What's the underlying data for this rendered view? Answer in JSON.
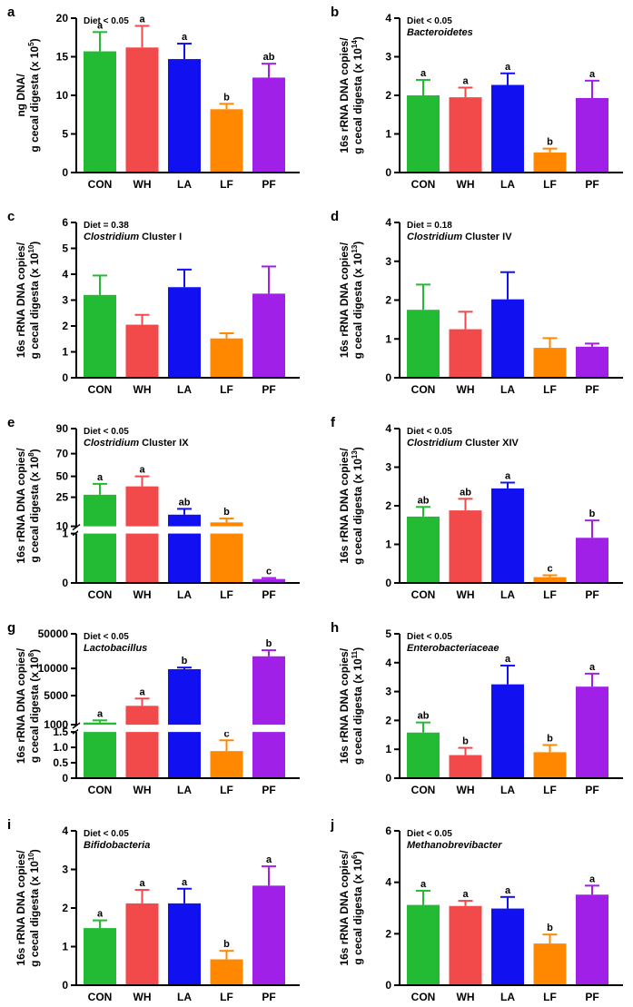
{
  "figure": {
    "categories": [
      "CON",
      "WH",
      "LA",
      "LF",
      "PF"
    ],
    "colors": {
      "CON": "#22bb33",
      "WH": "#f24a4a",
      "LA": "#1010f0",
      "LF": "#ff8800",
      "PF": "#a020e8"
    }
  },
  "chart_data": [
    {
      "panel": "a",
      "type": "bar",
      "categories": [
        "CON",
        "WH",
        "LA",
        "LF",
        "PF"
      ],
      "values": [
        15.7,
        16.2,
        14.7,
        8.2,
        12.3
      ],
      "errors": [
        2.5,
        2.8,
        2.0,
        0.7,
        1.8
      ],
      "sig_letters": [
        "a",
        "a",
        "a",
        "b",
        "ab"
      ],
      "stat": "Diet < 0.05",
      "taxon": "",
      "ylabel_line1": "ng DNA/",
      "ylabel_line2": "g cecal digesta (x 10",
      "ylabel_exp": "5",
      "ylabel_close": ")",
      "ylim": [
        0,
        20
      ],
      "yticks": [
        "0",
        "5",
        "10",
        "15",
        "20"
      ]
    },
    {
      "panel": "b",
      "type": "bar",
      "categories": [
        "CON",
        "WH",
        "LA",
        "LF",
        "PF"
      ],
      "values": [
        2.0,
        1.95,
        2.27,
        0.52,
        1.93
      ],
      "errors": [
        0.4,
        0.25,
        0.3,
        0.1,
        0.45
      ],
      "sig_letters": [
        "a",
        "a",
        "a",
        "b",
        "a"
      ],
      "stat": "Diet < 0.05",
      "taxon": "Bacteroidetes",
      "ylabel_line1": "16s rRNA DNA copies/",
      "ylabel_line2": "g cecal digesta (x 10",
      "ylabel_exp": "14",
      "ylabel_close": ")",
      "ylim": [
        0,
        4
      ],
      "yticks": [
        "0",
        "1",
        "2",
        "3",
        "4"
      ]
    },
    {
      "panel": "c",
      "type": "bar",
      "categories": [
        "CON",
        "WH",
        "LA",
        "LF",
        "PF"
      ],
      "values": [
        3.2,
        2.05,
        3.5,
        1.52,
        3.25
      ],
      "errors": [
        0.75,
        0.38,
        0.68,
        0.2,
        1.05
      ],
      "sig_letters": [
        "",
        "",
        "",
        "",
        ""
      ],
      "stat": "Diet  = 0.38",
      "taxon": "Clostridium",
      "taxon_suffix": " Cluster I",
      "ylabel_line1": "16s rRNA DNA copies/",
      "ylabel_line2": "g cecal digesta (x 10",
      "ylabel_exp": "10",
      "ylabel_close": ")",
      "ylim": [
        0,
        6
      ],
      "yticks": [
        "0",
        "1",
        "2",
        "3",
        "4",
        "5",
        "6"
      ]
    },
    {
      "panel": "d",
      "type": "bar",
      "categories": [
        "CON",
        "WH",
        "LA",
        "LF",
        "PF"
      ],
      "values": [
        1.75,
        1.25,
        2.02,
        0.77,
        0.8
      ],
      "errors": [
        0.65,
        0.45,
        0.7,
        0.25,
        0.08
      ],
      "sig_letters": [
        "",
        "",
        "",
        "",
        ""
      ],
      "stat": "Diet = 0.18",
      "taxon": "Clostridium",
      "taxon_suffix": " Cluster IV",
      "ylabel_line1": "16s rRNA DNA copies/",
      "ylabel_line2": "g cecal digesta (x 10",
      "ylabel_exp": "13",
      "ylabel_close": ")",
      "ylim": [
        0,
        4
      ],
      "yticks": [
        "0",
        "1",
        "2",
        "3",
        "4"
      ]
    },
    {
      "panel": "e",
      "type": "bar",
      "categories": [
        "CON",
        "WH",
        "LA",
        "LF",
        "PF"
      ],
      "values": [
        28,
        38,
        16,
        12,
        0.08
      ],
      "errors": [
        13,
        12,
        3,
        2,
        0.02
      ],
      "sig_letters": [
        "a",
        "a",
        "ab",
        "b",
        "c"
      ],
      "stat": "Diet < 0.05",
      "taxon": "Clostridium",
      "taxon_suffix": " Cluster IX",
      "ylabel_line1": "16s rRNA DNA copies/",
      "ylabel_line2": "g cecal digesta (x 10",
      "ylabel_exp": "8",
      "ylabel_close": ")",
      "axis_break": true,
      "lower_ylim": [
        0,
        1
      ],
      "upper_ylim": [
        10,
        90
      ],
      "yticks": [
        "0",
        "1",
        "10",
        "25",
        "50",
        "70",
        "90"
      ]
    },
    {
      "panel": "f",
      "type": "bar",
      "categories": [
        "CON",
        "WH",
        "LA",
        "LF",
        "PF"
      ],
      "values": [
        1.72,
        1.88,
        2.45,
        0.15,
        1.17
      ],
      "errors": [
        0.25,
        0.3,
        0.15,
        0.05,
        0.45
      ],
      "sig_letters": [
        "ab",
        "ab",
        "a",
        "c",
        "b"
      ],
      "stat": "Diet < 0.05",
      "taxon": "Clostridium",
      "taxon_suffix": " Cluster XIV",
      "ylabel_line1": "16s rRNA DNA copies/",
      "ylabel_line2": "g cecal digesta (x 10",
      "ylabel_exp": "13",
      "ylabel_close": ")",
      "ylim": [
        0,
        4
      ],
      "yticks": [
        "0",
        "1",
        "2",
        "3",
        "4"
      ]
    },
    {
      "panel": "g",
      "type": "bar",
      "categories": [
        "CON",
        "WH",
        "LA",
        "LF",
        "PF"
      ],
      "values": [
        1300,
        3600,
        9800,
        0.88,
        24000
      ],
      "errors": [
        300,
        1000,
        1200,
        0.35,
        7000
      ],
      "sig_letters": [
        "a",
        "a",
        "b",
        "c",
        "b"
      ],
      "stat": "Diet < 0.05",
      "taxon": "Lactobacillus",
      "ylabel_line1": "16s rRNA DNA copies/",
      "ylabel_line2": "g cecal digesta (x 10",
      "ylabel_exp": "8",
      "ylabel_close": ")",
      "axis_break": true,
      "lower_ylim": [
        0,
        1.5
      ],
      "upper_ylim": [
        1000,
        50000
      ],
      "yticks": [
        "0",
        "0.5",
        "1.0",
        "1.5",
        "1000",
        "5000",
        "10000",
        "50000"
      ]
    },
    {
      "panel": "h",
      "type": "bar",
      "categories": [
        "CON",
        "WH",
        "LA",
        "LF",
        "PF"
      ],
      "values": [
        1.58,
        0.8,
        3.25,
        0.9,
        3.17
      ],
      "errors": [
        0.35,
        0.25,
        0.65,
        0.25,
        0.45
      ],
      "sig_letters": [
        "ab",
        "b",
        "a",
        "b",
        "a"
      ],
      "stat": "Diet < 0.05",
      "taxon": "Enterobacteriaceae",
      "ylabel_line1": "16s rRNA DNA copies/",
      "ylabel_line2": "g cecal digesta (x 10",
      "ylabel_exp": "11",
      "ylabel_close": ")",
      "ylim": [
        0,
        5
      ],
      "yticks": [
        "0",
        "1",
        "2",
        "3",
        "4",
        "5"
      ]
    },
    {
      "panel": "i",
      "type": "bar",
      "categories": [
        "CON",
        "WH",
        "LA",
        "LF",
        "PF"
      ],
      "values": [
        1.48,
        2.12,
        2.12,
        0.67,
        2.58
      ],
      "errors": [
        0.2,
        0.35,
        0.38,
        0.22,
        0.5
      ],
      "sig_letters": [
        "a",
        "a",
        "a",
        "b",
        "a"
      ],
      "stat": "Diet < 0.05",
      "taxon": "Bifidobacteria",
      "ylabel_line1": "16s rRNA DNA copies/",
      "ylabel_line2": "g cecal digesta (x 10",
      "ylabel_exp": "10",
      "ylabel_close": ")",
      "ylim": [
        0,
        4
      ],
      "yticks": [
        "0",
        "1",
        "2",
        "3",
        "4"
      ]
    },
    {
      "panel": "j",
      "type": "bar",
      "categories": [
        "CON",
        "WH",
        "LA",
        "LF",
        "PF"
      ],
      "values": [
        3.12,
        3.08,
        2.98,
        1.62,
        3.52
      ],
      "errors": [
        0.55,
        0.2,
        0.45,
        0.35,
        0.35
      ],
      "sig_letters": [
        "a",
        "a",
        "a",
        "b",
        "a"
      ],
      "stat": "Diet < 0.05",
      "taxon": "Methanobrevibacter",
      "ylabel_line1": "16s rRNA DNA copies/",
      "ylabel_line2": "g cecal digesta (x 10",
      "ylabel_exp": "6",
      "ylabel_close": ")",
      "ylim": [
        0,
        6
      ],
      "yticks": [
        "0",
        "2",
        "4",
        "6"
      ]
    }
  ]
}
